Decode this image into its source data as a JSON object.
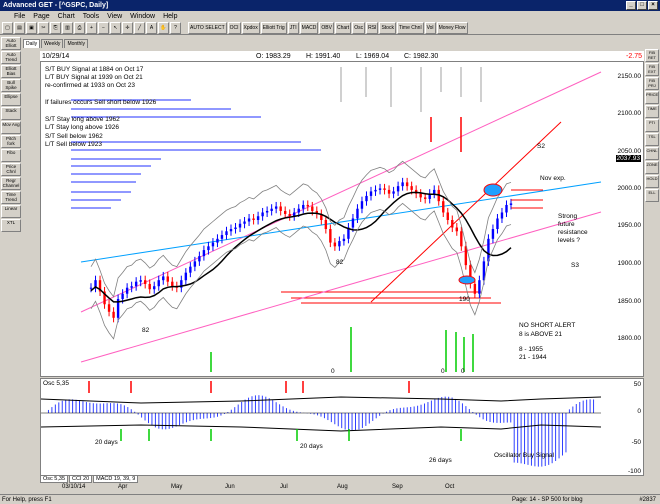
{
  "window": {
    "title": "Advanced GET - [^GSPC, Daily]",
    "controls": [
      "_",
      "□",
      "×"
    ]
  },
  "menu": [
    "File",
    "Page",
    "Chart",
    "Tools",
    "View",
    "Window",
    "Help"
  ],
  "toolbar_buttons": [
    "AUTO SELECT",
    "OCI",
    "Xpdox",
    "Elliott Trig",
    "JTI",
    "MACD",
    "OBV",
    "Chart",
    "Osc",
    "RSI",
    "Stock",
    "Time Chnl",
    "Vol",
    "Money Flow"
  ],
  "chart_tabs": [
    "Daily",
    "Weekly",
    "Monthly"
  ],
  "left_tools": [
    "Auto Elliott",
    "Auto Trend",
    "Elliott Bias",
    "Bull Spike",
    "Ellipse",
    "Stack",
    "Mov Avg",
    "Pitch fork",
    "Fibo",
    "Price Chnl",
    "Regr Channel",
    "Time Trend",
    "Linear",
    "XTL"
  ],
  "right_tools": [
    "FIB RET",
    "FIB EXT",
    "FIB PRJ",
    "PRICE",
    "TIME",
    "PTI",
    "TSL",
    "CHNL",
    "ZONE",
    "HOLD",
    "ELL"
  ],
  "infobar": {
    "date": "10/29/14",
    "open": "O: 1983.29",
    "high": "H: 1991.40",
    "low": "L: 1969.04",
    "close": "C: 1982.30",
    "change": "-2.75"
  },
  "annotations": {
    "lines": [
      "S/T BUY Signal at 1884 on Oct 17",
      "L/T BUY Signal at 1939 on Oct 21",
      "re-confirmed at 1933 on Oct 23",
      "If failures occurs Sell short below 1926",
      "S/T Stay long above 1962",
      "L/T Stay long above 1926",
      "S/T Sell below 1962",
      "L/T Sell below 1923"
    ],
    "s2": "S2",
    "s3": "S3",
    "nov_exp": "Nov exp.",
    "strong_levels": [
      "Strong",
      "future",
      "resistance",
      "levels ?"
    ],
    "no_short": [
      "NO SHORT ALERT",
      "8 is ABOVE 21"
    ],
    "ma_values": [
      "8   - 1955",
      "21 - 1944"
    ],
    "wave_82_a": "82",
    "wave_82_b": "82",
    "wave_190": "190",
    "zero_a": "0",
    "zero_b": "0",
    "zero_c": "0"
  },
  "price_axis": [
    "2150.00",
    "2100.00",
    "2050.00",
    "2037.93",
    "2000.00",
    "1950.00",
    "1900.00",
    "1850.00",
    "1800.00"
  ],
  "oscillator": {
    "label": "Osc 5,35",
    "axis": [
      "50",
      "0",
      "-50",
      "-100"
    ],
    "texts": [
      "20 days",
      "20 days",
      "26 days",
      "Oscillator Buy Signal"
    ]
  },
  "bottom_tabs": [
    "Osc 5,35",
    "CCI 20",
    "MACD 19, 39, 9"
  ],
  "date_axis": [
    "03/10/14",
    "Apr",
    "May",
    "Jun",
    "Jul",
    "Aug",
    "Sep",
    "Oct"
  ],
  "status": {
    "left": "For Help, press F1",
    "right": "Page: 14 - SP 500 for blog",
    "symbol": "#2837"
  },
  "colors": {
    "titlebar": "#0a246a",
    "up_bar": "#0000ff",
    "down_bar": "#ff0000",
    "green_text": "#00a000",
    "arrow_red": "#ff0000",
    "arrow_green": "#00cc00"
  },
  "chart_data": {
    "type": "candlestick",
    "symbol": "^GSPC",
    "timeframe": "Daily",
    "ylim": [
      1750,
      2170
    ],
    "series_close_approx": [
      1870,
      1880,
      1865,
      1848,
      1838,
      1830,
      1855,
      1862,
      1870,
      1872,
      1878,
      1880,
      1875,
      1868,
      1872,
      1880,
      1885,
      1878,
      1872,
      1870,
      1880,
      1890,
      1898,
      1905,
      1912,
      1920,
      1925,
      1930,
      1935,
      1940,
      1945,
      1948,
      1950,
      1955,
      1958,
      1962,
      1960,
      1965,
      1970,
      1972,
      1975,
      1978,
      1972,
      1968,
      1965,
      1970,
      1975,
      1980,
      1978,
      1972,
      1968,
      1960,
      1948,
      1930,
      1925,
      1932,
      1935,
      1950,
      1962,
      1975,
      1985,
      1992,
      1998,
      2000,
      2002,
      2000,
      1995,
      1998,
      2005,
      2010,
      2005,
      2000,
      1995,
      1990,
      1988,
      1995,
      2000,
      1985,
      1970,
      1960,
      1950,
      1945,
      1925,
      1900,
      1875,
      1862,
      1880,
      1905,
      1935,
      1948,
      1962,
      1970,
      1980,
      1982
    ]
  }
}
